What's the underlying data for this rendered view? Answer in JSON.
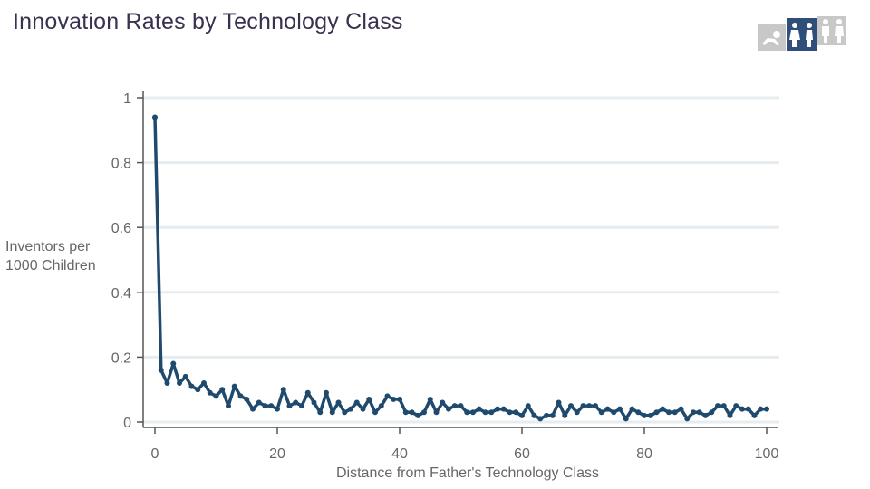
{
  "title": "Innovation Rates by Technology Class",
  "icons": [
    "crawling-child-icon",
    "two-children-icon",
    "two-adults-icon"
  ],
  "chart_data": {
    "type": "line",
    "title": "Innovation Rates by Technology Class",
    "xlabel": "Distance from Father's Technology Class",
    "ylabel_lines": [
      "Inventors per",
      "1000 Children"
    ],
    "xlim": [
      0,
      100
    ],
    "ylim": [
      0,
      1
    ],
    "xticks": [
      0,
      20,
      40,
      60,
      80,
      100
    ],
    "yticks": [
      0,
      0.2,
      0.4,
      0.6,
      0.8,
      1
    ],
    "ytick_labels": [
      "0",
      "0.2",
      "0.4",
      "0.6",
      "0.8",
      "1"
    ],
    "grid": true,
    "color": "#1f4a6e",
    "series": [
      {
        "name": "Inventors per 1000 Children",
        "x": [
          0,
          1,
          2,
          3,
          4,
          5,
          6,
          7,
          8,
          9,
          10,
          11,
          12,
          13,
          14,
          15,
          16,
          17,
          18,
          19,
          20,
          21,
          22,
          23,
          24,
          25,
          26,
          27,
          28,
          29,
          30,
          31,
          32,
          33,
          34,
          35,
          36,
          37,
          38,
          39,
          40,
          41,
          42,
          43,
          44,
          45,
          46,
          47,
          48,
          49,
          50,
          51,
          52,
          53,
          54,
          55,
          56,
          57,
          58,
          59,
          60,
          61,
          62,
          63,
          64,
          65,
          66,
          67,
          68,
          69,
          70,
          71,
          72,
          73,
          74,
          75,
          76,
          77,
          78,
          79,
          80,
          81,
          82,
          83,
          84,
          85,
          86,
          87,
          88,
          89,
          90,
          91,
          92,
          93,
          94,
          95,
          96,
          97,
          98,
          99,
          100
        ],
        "values": [
          0.94,
          0.16,
          0.12,
          0.18,
          0.12,
          0.14,
          0.11,
          0.1,
          0.12,
          0.09,
          0.08,
          0.1,
          0.05,
          0.11,
          0.08,
          0.07,
          0.04,
          0.06,
          0.05,
          0.05,
          0.04,
          0.1,
          0.05,
          0.06,
          0.05,
          0.09,
          0.06,
          0.03,
          0.09,
          0.03,
          0.06,
          0.03,
          0.04,
          0.06,
          0.04,
          0.07,
          0.03,
          0.05,
          0.08,
          0.07,
          0.07,
          0.03,
          0.03,
          0.02,
          0.03,
          0.07,
          0.03,
          0.06,
          0.04,
          0.05,
          0.05,
          0.03,
          0.03,
          0.04,
          0.03,
          0.03,
          0.04,
          0.04,
          0.03,
          0.03,
          0.02,
          0.05,
          0.02,
          0.01,
          0.02,
          0.02,
          0.06,
          0.02,
          0.05,
          0.03,
          0.05,
          0.05,
          0.05,
          0.03,
          0.04,
          0.03,
          0.04,
          0.01,
          0.04,
          0.03,
          0.02,
          0.02,
          0.03,
          0.04,
          0.03,
          0.03,
          0.04,
          0.01,
          0.03,
          0.03,
          0.02,
          0.03,
          0.05,
          0.05,
          0.02,
          0.05,
          0.04,
          0.04,
          0.02,
          0.04,
          0.04
        ]
      }
    ]
  }
}
